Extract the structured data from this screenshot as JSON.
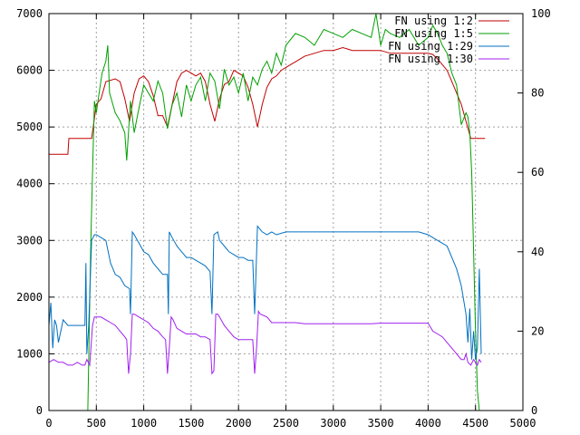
{
  "chart_data": {
    "type": "line",
    "title": "",
    "xlabel": "",
    "ylabel": "",
    "y2label": "",
    "xlim": [
      0,
      5000
    ],
    "ylim": [
      0,
      7000
    ],
    "y2lim": [
      0,
      100
    ],
    "grid": true,
    "legend_position": "top-right",
    "x_ticks": [
      0,
      500,
      1000,
      1500,
      2000,
      2500,
      3000,
      3500,
      4000,
      4500,
      5000
    ],
    "y_ticks": [
      0,
      1000,
      2000,
      3000,
      4000,
      5000,
      6000,
      7000
    ],
    "y2_ticks": [
      0,
      20,
      40,
      60,
      80,
      100
    ],
    "series": [
      {
        "name": "FN using 1:2",
        "axis": "y1",
        "color": "#c00000",
        "x": [
          0,
          200,
          210,
          450,
          500,
          550,
          600,
          700,
          750,
          800,
          850,
          900,
          950,
          1000,
          1050,
          1100,
          1150,
          1200,
          1250,
          1300,
          1350,
          1400,
          1450,
          1500,
          1550,
          1600,
          1650,
          1700,
          1750,
          1800,
          1850,
          1900,
          1950,
          2000,
          2050,
          2100,
          2150,
          2200,
          2250,
          2300,
          2350,
          2400,
          2450,
          2500,
          2550,
          2600,
          2650,
          2700,
          2800,
          2900,
          3000,
          3100,
          3200,
          3300,
          3400,
          3500,
          3600,
          3700,
          3800,
          3900,
          4000,
          4050,
          4100,
          4150,
          4200,
          4250,
          4300,
          4350,
          4400,
          4450,
          4500,
          4550,
          4600
        ],
        "values": [
          4520,
          4520,
          4800,
          4800,
          5400,
          5500,
          5800,
          5850,
          5800,
          5500,
          5100,
          5600,
          5850,
          5900,
          5800,
          5550,
          5200,
          5200,
          5000,
          5400,
          5800,
          5950,
          6000,
          5950,
          5900,
          5950,
          5800,
          5400,
          5100,
          5500,
          5750,
          5800,
          6000,
          5950,
          5900,
          5700,
          5400,
          5000,
          5400,
          5700,
          5850,
          5900,
          6000,
          6050,
          6100,
          6150,
          6200,
          6250,
          6300,
          6350,
          6350,
          6400,
          6350,
          6350,
          6350,
          6350,
          6300,
          6300,
          6300,
          6300,
          6300,
          6280,
          6200,
          6100,
          6000,
          5800,
          5600,
          5400,
          5100,
          4800,
          4800,
          4800,
          4800
        ]
      },
      {
        "name": "FN using 1:5",
        "axis": "y2",
        "color": "#00a000",
        "x": [
          410,
          440,
          460,
          480,
          500,
          530,
          560,
          600,
          620,
          640,
          700,
          750,
          800,
          820,
          860,
          900,
          940,
          1000,
          1050,
          1100,
          1150,
          1200,
          1250,
          1300,
          1350,
          1400,
          1450,
          1500,
          1550,
          1600,
          1650,
          1700,
          1750,
          1800,
          1850,
          1900,
          1950,
          2000,
          2050,
          2100,
          2150,
          2200,
          2250,
          2300,
          2350,
          2400,
          2450,
          2500,
          2600,
          2700,
          2800,
          2900,
          3000,
          3100,
          3200,
          3300,
          3400,
          3450,
          3500,
          3550,
          3600,
          3700,
          3800,
          3900,
          4000,
          4050,
          4100,
          4150,
          4200,
          4250,
          4300,
          4350,
          4400,
          4420,
          4440,
          4460,
          4480,
          4500,
          4520,
          4540
        ],
        "values": [
          0,
          40,
          60,
          78,
          75,
          80,
          85,
          88,
          92,
          80,
          75,
          73,
          70,
          63,
          78,
          70,
          75,
          82,
          80,
          78,
          83,
          80,
          71,
          77,
          80,
          74,
          82,
          78,
          82,
          84,
          78,
          85,
          83,
          76,
          86,
          82,
          84,
          80,
          85,
          78,
          84,
          82,
          86,
          88,
          85,
          90,
          87,
          92,
          95,
          94,
          92,
          96,
          95,
          94,
          96,
          95,
          94,
          100,
          92,
          96,
          95,
          94,
          96,
          92,
          94,
          97,
          95,
          92,
          90,
          85,
          82,
          72,
          75,
          74,
          70,
          60,
          40,
          20,
          5,
          0
        ]
      },
      {
        "name": "FN using 1:29",
        "axis": "y1",
        "color": "#0070c0",
        "x": [
          0,
          20,
          40,
          60,
          80,
          100,
          150,
          200,
          250,
          300,
          350,
          380,
          390,
          400,
          420,
          450,
          480,
          500,
          550,
          600,
          650,
          700,
          750,
          800,
          850,
          860,
          880,
          900,
          950,
          1000,
          1050,
          1100,
          1150,
          1200,
          1250,
          1260,
          1270,
          1300,
          1350,
          1400,
          1450,
          1500,
          1550,
          1600,
          1650,
          1700,
          1720,
          1740,
          1780,
          1800,
          1850,
          1900,
          1950,
          2000,
          2050,
          2100,
          2150,
          2170,
          2200,
          2250,
          2300,
          2350,
          2400,
          2500,
          2600,
          2700,
          2800,
          2900,
          3000,
          3100,
          3200,
          3300,
          3400,
          3500,
          3600,
          3700,
          3800,
          3900,
          4000,
          4050,
          4100,
          4150,
          4200,
          4250,
          4300,
          4350,
          4400,
          4420,
          4440,
          4460,
          4480,
          4500,
          4520,
          4540,
          4560
        ],
        "values": [
          1500,
          1900,
          1100,
          1600,
          1500,
          1200,
          1600,
          1500,
          1500,
          1500,
          1500,
          1500,
          2600,
          1000,
          1500,
          3000,
          3100,
          3100,
          3050,
          3000,
          2600,
          2400,
          2350,
          2200,
          2150,
          1700,
          3150,
          3100,
          2950,
          2800,
          2750,
          2600,
          2500,
          2400,
          2400,
          1700,
          3150,
          3050,
          2900,
          2800,
          2700,
          2700,
          2650,
          2600,
          2550,
          2450,
          1700,
          3100,
          3150,
          3000,
          2900,
          2800,
          2750,
          2700,
          2700,
          2650,
          2650,
          1700,
          3250,
          3150,
          3100,
          3150,
          3100,
          3150,
          3150,
          3150,
          3150,
          3150,
          3150,
          3150,
          3150,
          3150,
          3150,
          3150,
          3150,
          3150,
          3150,
          3150,
          3100,
          3050,
          3000,
          2950,
          2900,
          2700,
          2500,
          2200,
          1700,
          1200,
          1800,
          900,
          1400,
          900,
          1100,
          2500,
          1000
        ]
      },
      {
        "name": "FN using 1:30",
        "axis": "y1",
        "color": "#a020f0",
        "x": [
          0,
          50,
          100,
          150,
          200,
          250,
          300,
          350,
          380,
          400,
          430,
          460,
          480,
          500,
          550,
          600,
          650,
          700,
          750,
          800,
          820,
          840,
          860,
          880,
          900,
          950,
          1000,
          1050,
          1100,
          1150,
          1200,
          1230,
          1250,
          1270,
          1290,
          1310,
          1350,
          1400,
          1450,
          1500,
          1550,
          1600,
          1650,
          1700,
          1720,
          1740,
          1760,
          1780,
          1800,
          1850,
          1900,
          1950,
          2000,
          2050,
          2100,
          2150,
          2170,
          2190,
          2210,
          2230,
          2300,
          2350,
          2400,
          2500,
          2600,
          2700,
          2800,
          2900,
          3000,
          3100,
          3200,
          3300,
          3400,
          3500,
          3600,
          3700,
          3800,
          3900,
          4000,
          4050,
          4100,
          4150,
          4200,
          4250,
          4300,
          4350,
          4380,
          4400,
          4420,
          4450,
          4480,
          4500,
          4520,
          4540,
          4560
        ],
        "values": [
          850,
          900,
          850,
          850,
          800,
          800,
          850,
          800,
          800,
          900,
          800,
          1500,
          1650,
          1650,
          1650,
          1600,
          1550,
          1500,
          1400,
          1300,
          1250,
          650,
          1000,
          1700,
          1700,
          1650,
          1600,
          1550,
          1450,
          1400,
          1300,
          1250,
          650,
          1100,
          1650,
          1600,
          1450,
          1400,
          1350,
          1350,
          1350,
          1300,
          1300,
          1250,
          650,
          700,
          1700,
          1700,
          1650,
          1500,
          1400,
          1300,
          1250,
          1250,
          1250,
          1250,
          650,
          1100,
          1750,
          1700,
          1650,
          1550,
          1550,
          1550,
          1550,
          1530,
          1530,
          1530,
          1530,
          1530,
          1530,
          1530,
          1530,
          1540,
          1540,
          1540,
          1540,
          1540,
          1540,
          1400,
          1350,
          1300,
          1200,
          1100,
          1000,
          900,
          900,
          1000,
          850,
          800,
          900,
          850,
          800,
          900,
          850
        ]
      }
    ]
  }
}
